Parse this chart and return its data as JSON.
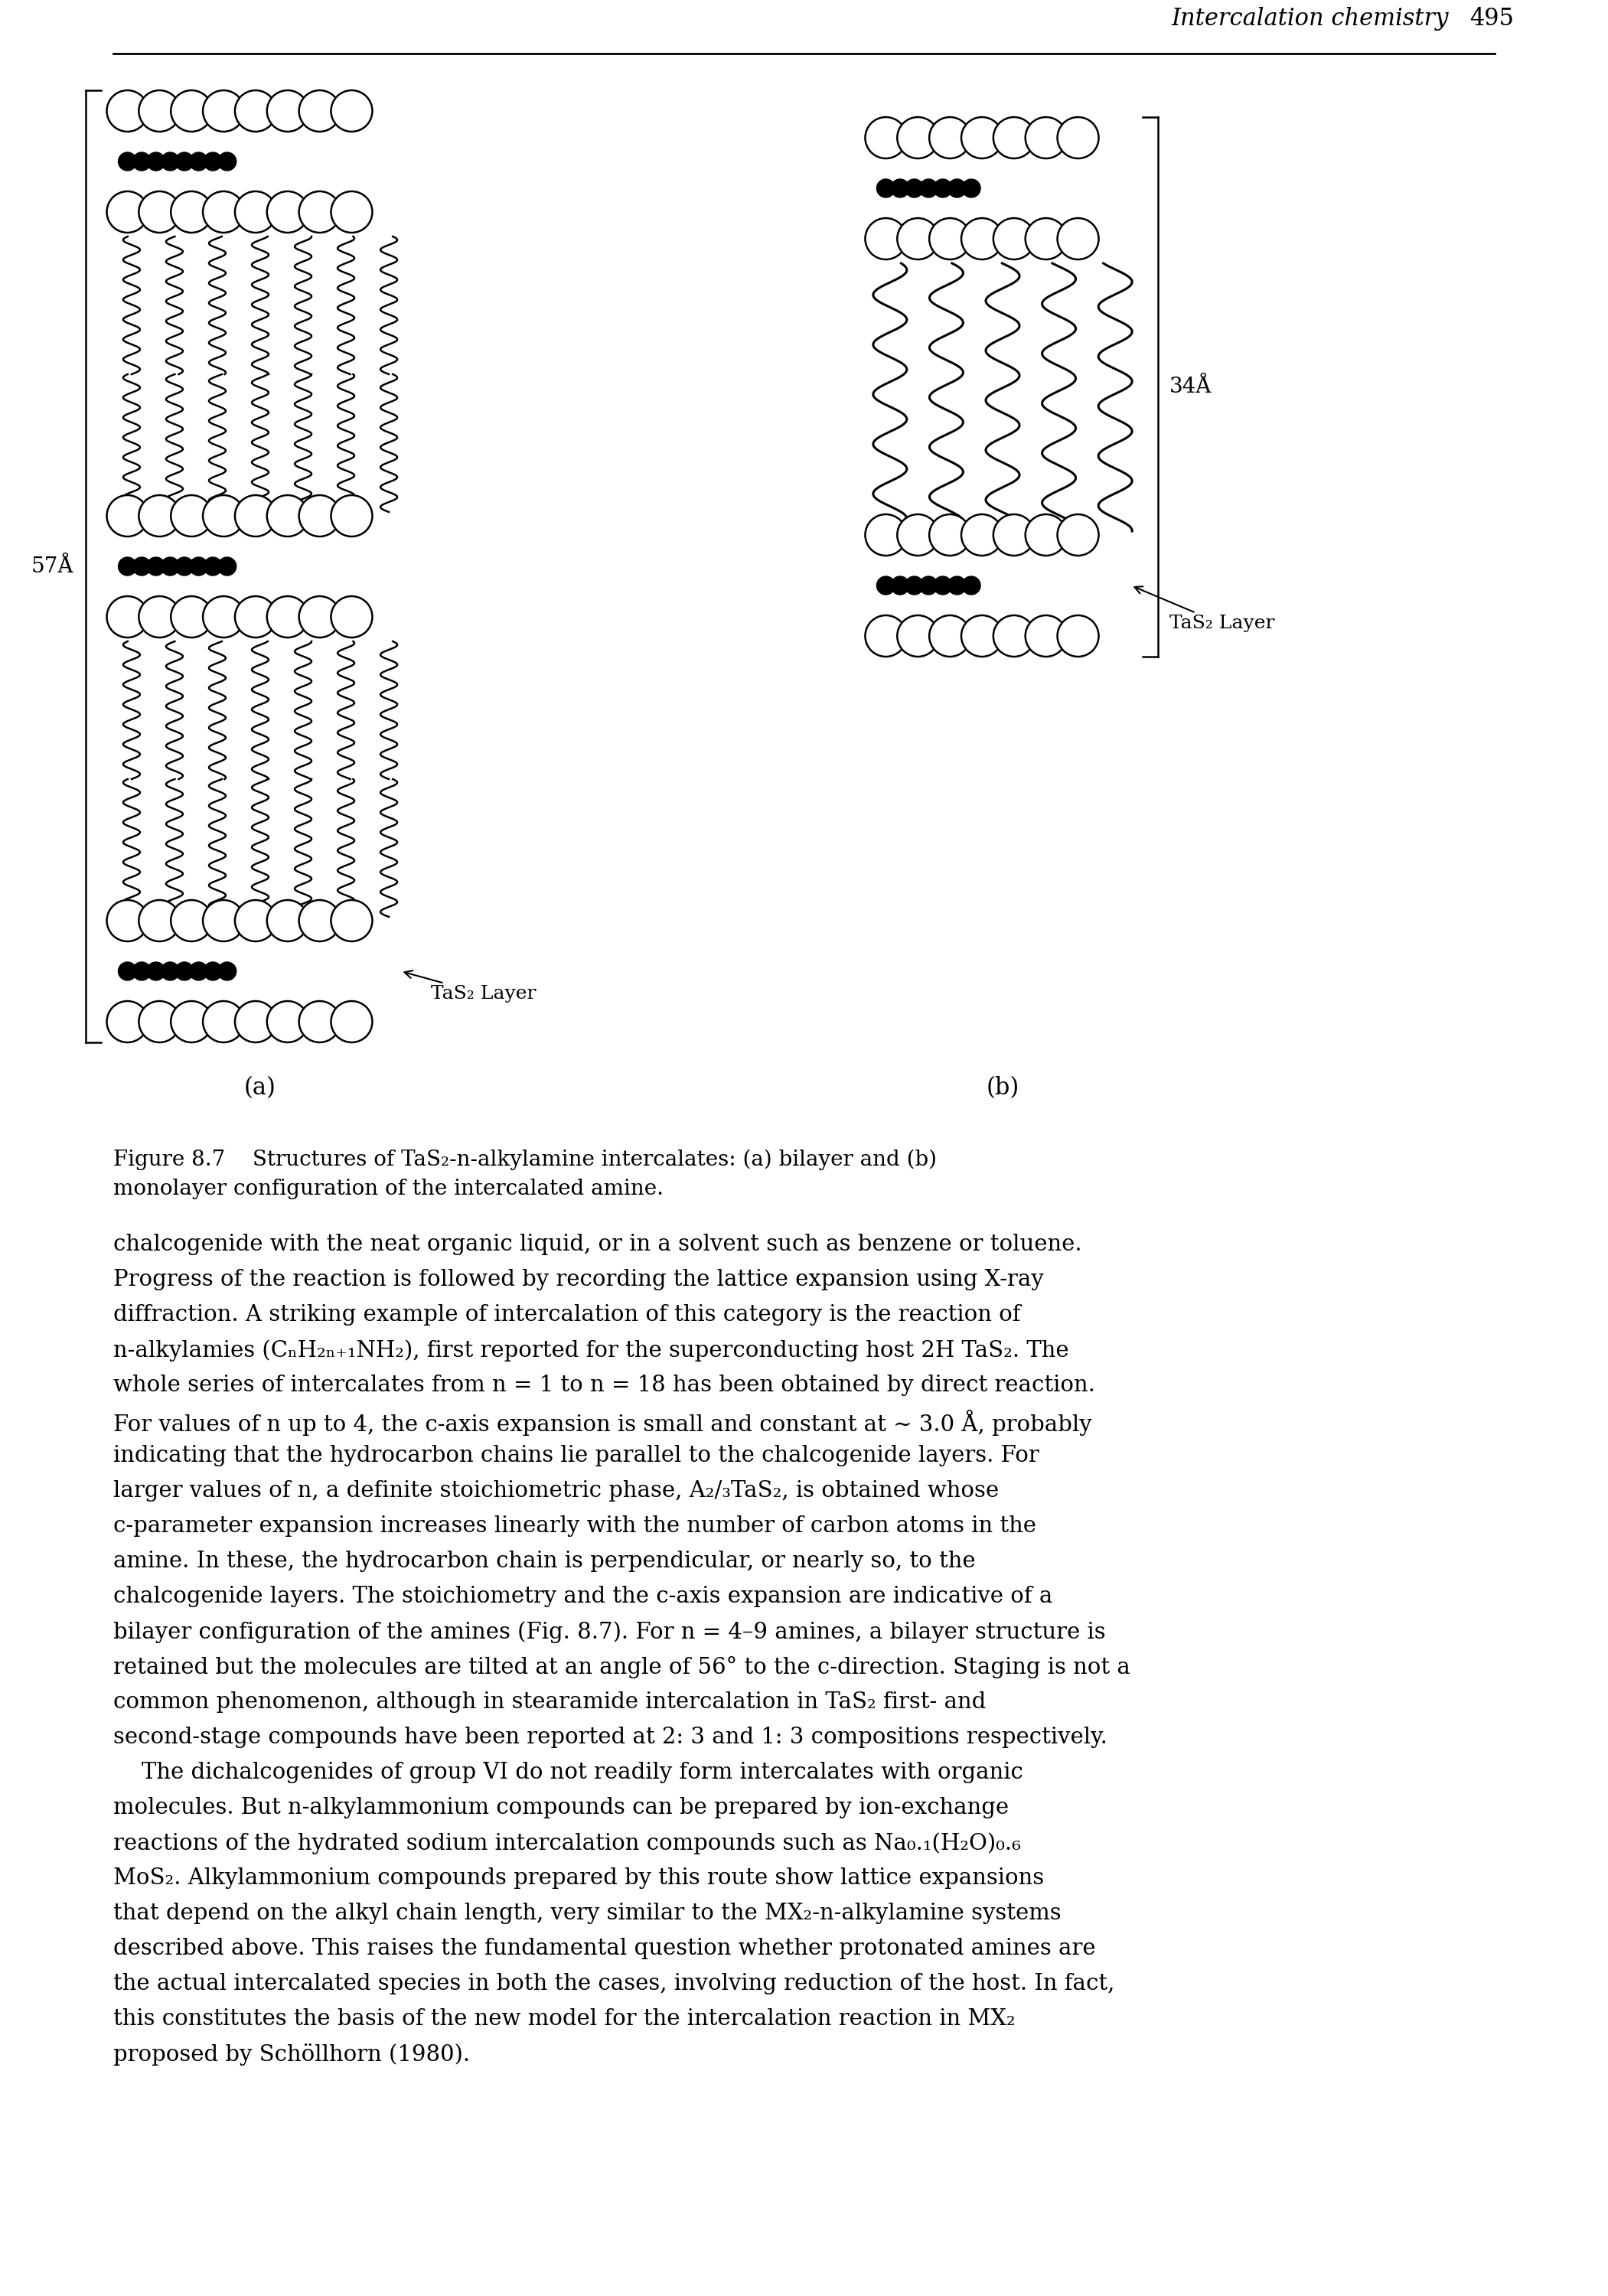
{
  "bg_color": "#ffffff",
  "header_text": "Intercalation chemistry",
  "header_page": "495",
  "fig_label_a": "(a)",
  "fig_label_b": "(b)",
  "caption_line1": "Figure 8.7    Structures of TaS₂-n-alkylamine intercalates: (a) bilayer and (b)",
  "caption_line2": "monolayer configuration of the intercalated amine.",
  "label_57A": "57Å",
  "label_34A": "34Å",
  "label_TaS2_a": "TaS₂ Layer",
  "label_TaS2_b": "TaS₂ Layer",
  "body_text": [
    "chalcogenide with the neat organic liquid, or in a solvent such as benzene or toluene.",
    "Progress of the reaction is followed by recording the lattice expansion using X-ray",
    "diffraction. A striking example of intercalation of this category is the reaction of",
    "n-alkylamies (CₙH₂ₙ₊₁NH₂), first reported for the superconducting host 2H TaS₂. The",
    "whole series of intercalates from n = 1 to n = 18 has been obtained by direct reaction.",
    "For values of n up to 4, the c-axis expansion is small and constant at ∼ 3.0 Å, probably",
    "indicating that the hydrocarbon chains lie parallel to the chalcogenide layers. For",
    "larger values of n, a definite stoichiometric phase, A₂/₃TaS₂, is obtained whose",
    "c-parameter expansion increases linearly with the number of carbon atoms in the",
    "amine. In these, the hydrocarbon chain is perpendicular, or nearly so, to the",
    "chalcogenide layers. The stoichiometry and the c-axis expansion are indicative of a",
    "bilayer configuration of the amines (Fig. 8.7). For n = 4–9 amines, a bilayer structure is",
    "retained but the molecules are tilted at an angle of 56° to the c-direction. Staging is not a",
    "common phenomenon, although in stearamide intercalation in TaS₂ first- and",
    "second-stage compounds have been reported at 2: 3 and 1: 3 compositions respectively.",
    "    The dichalcogenides of group VI do not readily form intercalates with organic",
    "molecules. But n-alkylammonium compounds can be prepared by ion-exchange",
    "reactions of the hydrated sodium intercalation compounds such as Na₀.₁(H₂O)₀.₆",
    "MoS₂. Alkylammonium compounds prepared by this route show lattice expansions",
    "that depend on the alkyl chain length, very similar to the MX₂-n-alkylamine systems",
    "described above. This raises the fundamental question whether protonated amines are",
    "the actual intercalated species in both the cases, involving reduction of the host. In fact,",
    "this constitutes the basis of the new model for the intercalation reaction in MX₂",
    "proposed by Schöllhorn (1980)."
  ]
}
